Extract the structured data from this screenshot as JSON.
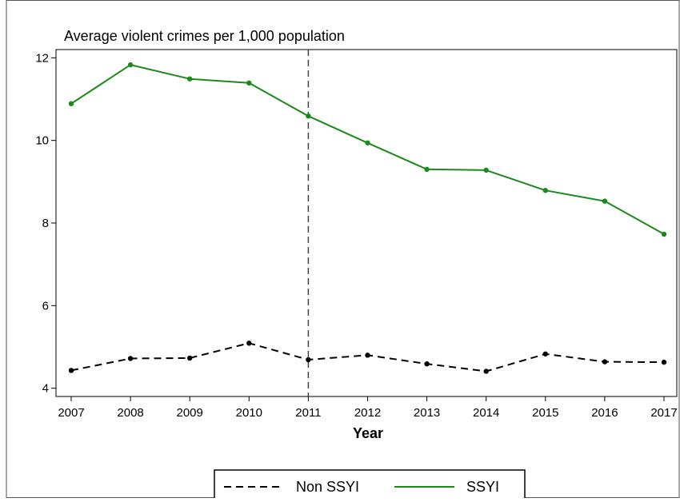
{
  "chart_data": {
    "type": "line",
    "title": "Average violent crimes per 1,000 population",
    "xlabel": "Year",
    "ylabel": "",
    "x": [
      2007,
      2008,
      2009,
      2010,
      2011,
      2012,
      2013,
      2014,
      2015,
      2016,
      2017
    ],
    "x_tick_labels": [
      "2007",
      "2008",
      "2009",
      "2010",
      "2011",
      "2012",
      "2013",
      "2014",
      "2015",
      "2016",
      "2017"
    ],
    "y_ticks": [
      4,
      6,
      8,
      10,
      12
    ],
    "y_tick_labels": [
      "4",
      "6",
      "8",
      "10",
      "12"
    ],
    "ylim": [
      3.8,
      12.2
    ],
    "reference_line_x": 2011,
    "grid": false,
    "legend_position": "bottom",
    "series": [
      {
        "name": "Non SSYI",
        "style": "dashed",
        "color": "#000000",
        "values": [
          4.43,
          4.72,
          4.73,
          5.09,
          4.69,
          4.8,
          4.59,
          4.41,
          4.83,
          4.64,
          4.63
        ]
      },
      {
        "name": "SSYI",
        "style": "solid",
        "color": "#1a8a1a",
        "values": [
          10.89,
          11.83,
          11.49,
          11.39,
          10.59,
          9.94,
          9.3,
          9.28,
          8.79,
          8.53,
          7.73
        ]
      }
    ]
  }
}
